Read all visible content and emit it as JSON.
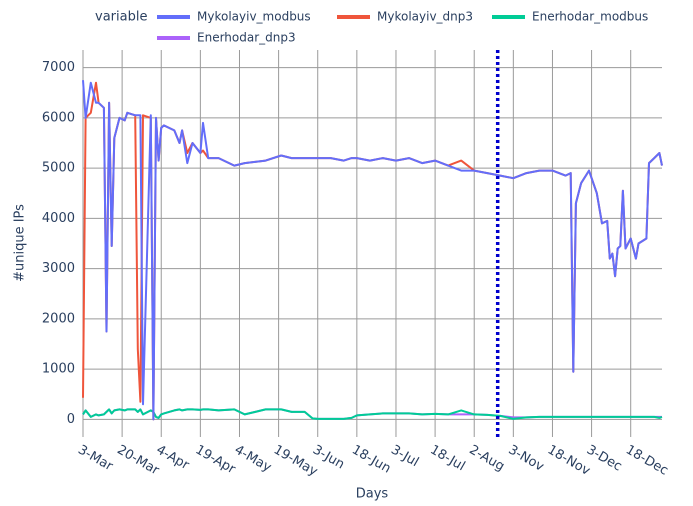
{
  "chart_data": {
    "type": "line",
    "legend_title": "variable",
    "x_label": "Days",
    "y_label": "#unique IPs",
    "x": [
      0,
      1,
      3,
      5,
      6,
      8,
      9,
      10,
      11,
      12,
      14,
      16,
      17,
      20,
      21,
      22,
      23,
      26,
      27,
      28,
      29,
      30,
      31,
      35,
      37,
      38,
      40,
      42,
      45,
      46,
      48,
      52,
      58,
      62,
      70,
      76,
      80,
      85,
      88,
      90,
      95,
      100,
      103,
      105,
      110,
      115,
      120,
      125,
      130,
      135,
      140,
      145,
      150,
      155,
      160,
      165,
      170,
      175,
      180,
      185,
      187,
      188,
      189,
      191,
      194,
      197,
      199,
      201,
      202,
      203,
      204,
      205,
      206,
      207,
      208,
      210,
      212,
      213,
      216,
      217,
      219,
      221,
      222
    ],
    "series": [
      {
        "name": "Mykolayiv_modbus",
        "color": "#636efa",
        "values": [
          6750,
          6000,
          6700,
          6300,
          6300,
          6200,
          1750,
          6300,
          3450,
          5600,
          6000,
          5950,
          6100,
          6050,
          6050,
          6050,
          300,
          6050,
          0,
          6000,
          5150,
          5800,
          5850,
          5750,
          5500,
          5750,
          5100,
          5500,
          5300,
          5900,
          5200,
          5200,
          5050,
          5100,
          5150,
          5250,
          5200,
          5200,
          5200,
          5200,
          5200,
          5150,
          5200,
          5200,
          5150,
          5200,
          5150,
          5200,
          5100,
          5150,
          5050,
          4950,
          4950,
          4900,
          4850,
          4800,
          4900,
          4950,
          4950,
          4850,
          4900,
          950,
          4300,
          4700,
          4950,
          4500,
          3900,
          3950,
          3200,
          3300,
          2850,
          3400,
          3450,
          4550,
          3400,
          3600,
          3200,
          3500,
          3600,
          5100,
          5200,
          5300,
          5050
        ]
      },
      {
        "name": "Mykolayiv_dnp3",
        "color": "#ef553b",
        "values": [
          430,
          6000,
          6100,
          6700,
          6300,
          6200,
          1750,
          6300,
          3450,
          5600,
          6000,
          5950,
          6100,
          6050,
          1400,
          350,
          6050,
          6000,
          0,
          6000,
          5150,
          5800,
          5850,
          5750,
          5500,
          5750,
          5300,
          5500,
          5300,
          5350,
          5200,
          5200,
          5050,
          5100,
          5150,
          5250,
          5200,
          5200,
          5200,
          5200,
          5200,
          5150,
          5200,
          5200,
          5150,
          5200,
          5150,
          5200,
          5100,
          5150,
          5050,
          5150,
          4950,
          4900,
          4850,
          4800,
          4900,
          4950,
          4950,
          4850,
          4900,
          950,
          4300,
          4700,
          4950,
          4500,
          3900,
          3950,
          3200,
          3300,
          2850,
          3400,
          3450,
          4550,
          3400,
          3600,
          3200,
          3500,
          3600,
          5100,
          5200,
          5300,
          5050
        ]
      },
      {
        "name": "Enerhodar_modbus",
        "color": "#00cc96",
        "values": [
          100,
          180,
          50,
          100,
          80,
          100,
          150,
          200,
          120,
          180,
          200,
          180,
          200,
          200,
          150,
          200,
          100,
          180,
          150,
          50,
          30,
          100,
          120,
          180,
          200,
          180,
          200,
          200,
          190,
          200,
          200,
          180,
          200,
          100,
          200,
          200,
          150,
          150,
          20,
          10,
          10,
          10,
          30,
          80,
          100,
          120,
          120,
          120,
          100,
          110,
          100,
          180,
          100,
          90,
          70,
          10,
          40,
          50,
          50,
          50,
          50,
          50,
          50,
          50,
          50,
          50,
          50,
          50,
          50,
          50,
          50,
          50,
          50,
          50,
          50,
          50,
          50,
          50,
          50,
          50,
          50,
          30,
          50
        ]
      },
      {
        "name": "Enerhodar_dnp3",
        "color": "#ab63fa",
        "values": [
          100,
          180,
          50,
          100,
          80,
          100,
          150,
          200,
          120,
          180,
          200,
          180,
          200,
          200,
          150,
          200,
          100,
          180,
          150,
          50,
          30,
          100,
          120,
          180,
          200,
          180,
          200,
          200,
          190,
          200,
          200,
          180,
          200,
          100,
          200,
          200,
          150,
          150,
          20,
          10,
          10,
          10,
          30,
          80,
          100,
          120,
          120,
          120,
          100,
          110,
          100,
          100,
          100,
          90,
          70,
          40,
          40,
          50,
          50,
          50,
          50,
          50,
          50,
          50,
          50,
          50,
          50,
          50,
          50,
          50,
          50,
          50,
          50,
          50,
          50,
          50,
          50,
          50,
          50,
          50,
          50,
          50,
          50
        ]
      }
    ],
    "xlim": [
      0,
      222
    ],
    "xticks": [
      {
        "value": 0,
        "label": "3-Mar"
      },
      {
        "value": 15,
        "label": "20-Mar"
      },
      {
        "value": 30,
        "label": "4-Apr"
      },
      {
        "value": 45,
        "label": "19-Apr"
      },
      {
        "value": 60,
        "label": "4-May"
      },
      {
        "value": 75,
        "label": "19-May"
      },
      {
        "value": 90,
        "label": "3-Jun"
      },
      {
        "value": 105,
        "label": "18-Jun"
      },
      {
        "value": 120,
        "label": "3-Jul"
      },
      {
        "value": 135,
        "label": "18-Jul"
      },
      {
        "value": 150,
        "label": "2-Aug"
      },
      {
        "value": 165,
        "label": "3-Nov"
      },
      {
        "value": 180,
        "label": "18-Nov"
      },
      {
        "value": 195,
        "label": "3-Dec"
      },
      {
        "value": 210,
        "label": "18-Dec"
      }
    ],
    "ylim": [
      -350,
      7350
    ],
    "yticks": [
      0,
      1000,
      2000,
      3000,
      4000,
      5000,
      6000,
      7000
    ],
    "grid": true,
    "vline": {
      "x": 159,
      "color": "#0000cc"
    }
  }
}
